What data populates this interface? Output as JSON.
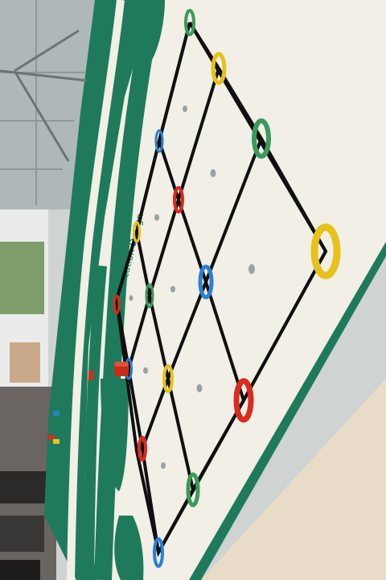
{
  "photo": {
    "subject": "robot-competition-mat",
    "colors": {
      "mat": "#f1efe6",
      "green": "#1f7a5c",
      "line": "#101010",
      "ring_yellow": "#e6c21a",
      "ring_green": "#3a9a5c",
      "ring_red": "#d92b1e",
      "ring_blue": "#2b7fd0",
      "dot_gray": "#9aa0a6",
      "floor": "#e8dcc9",
      "window": "#c7d2d6"
    }
  },
  "mat": {
    "label_text": "ge Communication Design"
  }
}
